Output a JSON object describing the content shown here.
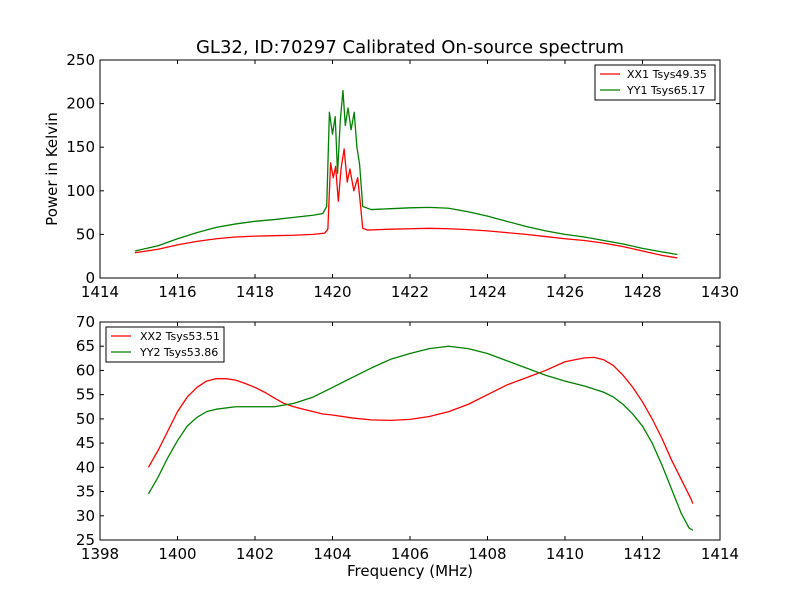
{
  "chart_data": [
    {
      "type": "line",
      "title": "GL32, ID:70297 Calibrated On-source spectrum",
      "xlabel": "",
      "ylabel": "Power in Kelvin",
      "xlim": [
        1414,
        1430
      ],
      "ylim": [
        0,
        250
      ],
      "xticks": [
        "1414",
        "1416",
        "1418",
        "1420",
        "1422",
        "1424",
        "1426",
        "1428",
        "1430"
      ],
      "yticks": [
        "0",
        "50",
        "100",
        "150",
        "200",
        "250"
      ],
      "grid": false,
      "legend": "top-right",
      "series": [
        {
          "name": "XX1 Tsys49.35",
          "color": "#ff0000",
          "points": [
            [
              1414.9,
              29
            ],
            [
              1415.5,
              33
            ],
            [
              1416.0,
              38
            ],
            [
              1416.5,
              42
            ],
            [
              1417.0,
              45
            ],
            [
              1417.5,
              47
            ],
            [
              1418.0,
              48
            ],
            [
              1418.5,
              48.5
            ],
            [
              1419.0,
              49
            ],
            [
              1419.5,
              50
            ],
            [
              1419.8,
              51.5
            ],
            [
              1419.88,
              56
            ],
            [
              1419.95,
              132
            ],
            [
              1420.02,
              115
            ],
            [
              1420.08,
              128
            ],
            [
              1420.15,
              88
            ],
            [
              1420.22,
              125
            ],
            [
              1420.3,
              148
            ],
            [
              1420.38,
              110
            ],
            [
              1420.45,
              125
            ],
            [
              1420.55,
              100
            ],
            [
              1420.65,
              115
            ],
            [
              1420.72,
              85
            ],
            [
              1420.78,
              57
            ],
            [
              1420.9,
              55
            ],
            [
              1421.5,
              56
            ],
            [
              1422.0,
              56.5
            ],
            [
              1422.5,
              57
            ],
            [
              1423.0,
              56.5
            ],
            [
              1423.5,
              55.5
            ],
            [
              1424.0,
              54
            ],
            [
              1424.5,
              52
            ],
            [
              1425.0,
              50
            ],
            [
              1425.5,
              47.5
            ],
            [
              1426.0,
              45
            ],
            [
              1426.5,
              43
            ],
            [
              1427.0,
              40
            ],
            [
              1427.5,
              36
            ],
            [
              1428.0,
              31
            ],
            [
              1428.5,
              26
            ],
            [
              1428.9,
              23
            ]
          ]
        },
        {
          "name": "YY1 Tsys65.17",
          "color": "#008000",
          "points": [
            [
              1414.9,
              31
            ],
            [
              1415.5,
              37
            ],
            [
              1416.0,
              45
            ],
            [
              1416.5,
              52
            ],
            [
              1417.0,
              58
            ],
            [
              1417.5,
              62
            ],
            [
              1418.0,
              65
            ],
            [
              1418.5,
              67
            ],
            [
              1419.0,
              69.5
            ],
            [
              1419.5,
              72
            ],
            [
              1419.75,
              74
            ],
            [
              1419.85,
              82
            ],
            [
              1419.92,
              190
            ],
            [
              1420.0,
              165
            ],
            [
              1420.07,
              185
            ],
            [
              1420.13,
              120
            ],
            [
              1420.2,
              180
            ],
            [
              1420.27,
              215
            ],
            [
              1420.33,
              175
            ],
            [
              1420.4,
              195
            ],
            [
              1420.48,
              170
            ],
            [
              1420.56,
              190
            ],
            [
              1420.63,
              150
            ],
            [
              1420.7,
              130
            ],
            [
              1420.78,
              82
            ],
            [
              1421.0,
              78.5
            ],
            [
              1421.5,
              79.5
            ],
            [
              1422.0,
              80.5
            ],
            [
              1422.5,
              81
            ],
            [
              1423.0,
              80
            ],
            [
              1423.5,
              76
            ],
            [
              1424.0,
              71
            ],
            [
              1424.5,
              65
            ],
            [
              1425.0,
              59
            ],
            [
              1425.5,
              54
            ],
            [
              1426.0,
              50
            ],
            [
              1426.5,
              47
            ],
            [
              1427.0,
              43
            ],
            [
              1427.5,
              39
            ],
            [
              1428.0,
              34
            ],
            [
              1428.5,
              30
            ],
            [
              1428.9,
              27
            ]
          ]
        }
      ]
    },
    {
      "type": "line",
      "title": "",
      "xlabel": "Frequency (MHz)",
      "ylabel": "",
      "xlim": [
        1398,
        1414
      ],
      "ylim": [
        25,
        70
      ],
      "xticks": [
        "1398",
        "1400",
        "1402",
        "1404",
        "1406",
        "1408",
        "1410",
        "1412",
        "1414"
      ],
      "yticks": [
        "25",
        "30",
        "35",
        "40",
        "45",
        "50",
        "55",
        "60",
        "65",
        "70"
      ],
      "grid": false,
      "legend": "top-left",
      "series": [
        {
          "name": "XX2 Tsys53.51",
          "color": "#ff0000",
          "points": [
            [
              1399.25,
              40
            ],
            [
              1399.5,
              43.5
            ],
            [
              1399.75,
              47.5
            ],
            [
              1400.0,
              51.5
            ],
            [
              1400.25,
              54.5
            ],
            [
              1400.5,
              56.5
            ],
            [
              1400.75,
              57.8
            ],
            [
              1401.0,
              58.3
            ],
            [
              1401.25,
              58.3
            ],
            [
              1401.5,
              58
            ],
            [
              1401.75,
              57.3
            ],
            [
              1402.0,
              56.5
            ],
            [
              1402.25,
              55.5
            ],
            [
              1402.5,
              54.3
            ],
            [
              1402.75,
              53.2
            ],
            [
              1403.0,
              52.5
            ],
            [
              1403.25,
              52
            ],
            [
              1403.5,
              51.5
            ],
            [
              1403.75,
              51
            ],
            [
              1404.0,
              50.8
            ],
            [
              1404.5,
              50.2
            ],
            [
              1405.0,
              49.8
            ],
            [
              1405.5,
              49.7
            ],
            [
              1406.0,
              49.9
            ],
            [
              1406.5,
              50.5
            ],
            [
              1407.0,
              51.5
            ],
            [
              1407.5,
              53
            ],
            [
              1408.0,
              55
            ],
            [
              1408.5,
              57
            ],
            [
              1409.0,
              58.5
            ],
            [
              1409.5,
              60
            ],
            [
              1410.0,
              61.8
            ],
            [
              1410.5,
              62.6
            ],
            [
              1410.75,
              62.7
            ],
            [
              1411.0,
              62.2
            ],
            [
              1411.25,
              61
            ],
            [
              1411.5,
              59
            ],
            [
              1411.75,
              56.5
            ],
            [
              1412.0,
              53.5
            ],
            [
              1412.25,
              50
            ],
            [
              1412.5,
              46
            ],
            [
              1412.75,
              41.5
            ],
            [
              1413.0,
              37.5
            ],
            [
              1413.25,
              33.5
            ],
            [
              1413.3,
              32.5
            ]
          ]
        },
        {
          "name": "YY2 Tsys53.86",
          "color": "#008000",
          "points": [
            [
              1399.25,
              34.5
            ],
            [
              1399.5,
              38
            ],
            [
              1399.75,
              42
            ],
            [
              1400.0,
              45.5
            ],
            [
              1400.25,
              48.5
            ],
            [
              1400.5,
              50.3
            ],
            [
              1400.75,
              51.5
            ],
            [
              1401.0,
              52
            ],
            [
              1401.5,
              52.5
            ],
            [
              1402.0,
              52.5
            ],
            [
              1402.5,
              52.5
            ],
            [
              1403.0,
              53.2
            ],
            [
              1403.5,
              54.5
            ],
            [
              1404.0,
              56.5
            ],
            [
              1404.5,
              58.5
            ],
            [
              1405.0,
              60.5
            ],
            [
              1405.5,
              62.3
            ],
            [
              1406.0,
              63.5
            ],
            [
              1406.5,
              64.5
            ],
            [
              1407.0,
              65
            ],
            [
              1407.5,
              64.5
            ],
            [
              1408.0,
              63.5
            ],
            [
              1408.5,
              62
            ],
            [
              1409.0,
              60.5
            ],
            [
              1409.5,
              59
            ],
            [
              1410.0,
              57.8
            ],
            [
              1410.5,
              56.8
            ],
            [
              1411.0,
              55.5
            ],
            [
              1411.25,
              54.5
            ],
            [
              1411.5,
              53
            ],
            [
              1411.75,
              51
            ],
            [
              1412.0,
              48.5
            ],
            [
              1412.25,
              45
            ],
            [
              1412.5,
              40.5
            ],
            [
              1412.75,
              35.5
            ],
            [
              1413.0,
              30.5
            ],
            [
              1413.2,
              27.5
            ],
            [
              1413.3,
              27
            ]
          ]
        }
      ]
    }
  ]
}
